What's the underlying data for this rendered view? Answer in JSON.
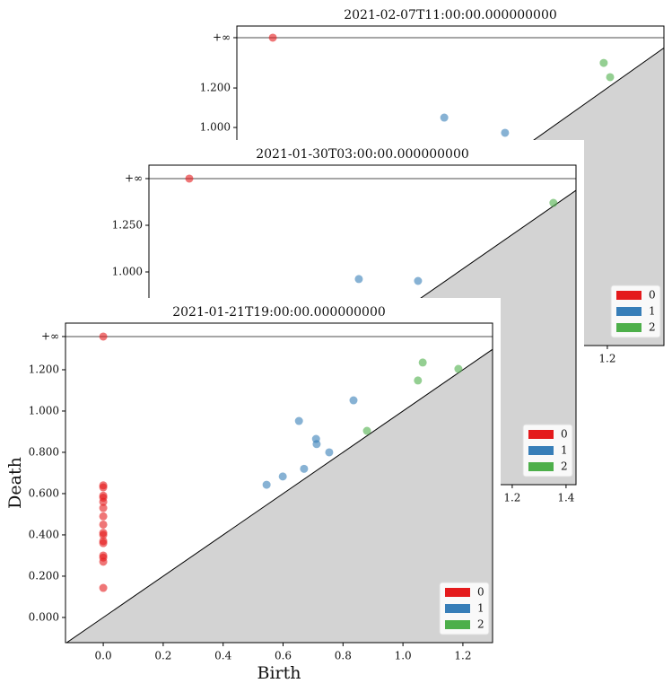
{
  "chart_data": [
    {
      "type": "scatter",
      "title": "2021-02-07T11:00:00.000000000",
      "xlim": [
        -0.129,
        1.403
      ],
      "ylim": [
        -0.105,
        1.514
      ],
      "xticks": [
        1.2
      ],
      "yticks": [
        {
          "value": 1.0,
          "label": "1.000"
        },
        {
          "value": 1.2,
          "label": "1.200"
        },
        {
          "value": 1.455,
          "label": "+∞"
        }
      ],
      "diagonal": true,
      "legend": "lower right",
      "series": [
        {
          "name": "0",
          "color": "#e41a1c",
          "x": [
            0
          ],
          "y": [
            1.455
          ]
        },
        {
          "name": "1",
          "color": "#377eb8",
          "x": [
            0.615,
            0.833
          ],
          "y": [
            1.05,
            0.973
          ]
        },
        {
          "name": "2",
          "color": "#4daf4a",
          "x": [
            1.187,
            1.21
          ],
          "y": [
            1.327,
            1.255
          ]
        }
      ]
    },
    {
      "type": "scatter",
      "title": "2021-01-30T03:00:00.000000000",
      "xlim": [
        -0.15,
        1.437
      ],
      "ylim": [
        -0.139,
        1.572
      ],
      "xticks": [
        1.2,
        1.4
      ],
      "yticks": [
        {
          "value": 1.0,
          "label": "1.000"
        },
        {
          "value": 1.25,
          "label": "1.250"
        },
        {
          "value": 1.5,
          "label": "+∞"
        }
      ],
      "diagonal": true,
      "legend": "lower right",
      "series": [
        {
          "name": "0",
          "color": "#e41a1c",
          "x": [
            0
          ],
          "y": [
            1.5
          ]
        },
        {
          "name": "1",
          "color": "#377eb8",
          "x": [
            0.63,
            0.85
          ],
          "y": [
            0.962,
            0.952
          ]
        },
        {
          "name": "2",
          "color": "#4daf4a",
          "x": [
            1.353
          ],
          "y": [
            1.37
          ]
        }
      ]
    },
    {
      "type": "scatter",
      "title": "2021-01-21T19:00:00.000000000",
      "x_label": "Birth",
      "y_label": "Death",
      "xlim": [
        -0.126,
        1.299
      ],
      "ylim": [
        -0.122,
        1.426
      ],
      "xticks": [
        {
          "value": 0,
          "label": "0.0"
        },
        0.2,
        0.4,
        0.6,
        0.8,
        {
          "value": 1,
          "label": "1.0"
        },
        1.2
      ],
      "yticks": [
        {
          "value": 0,
          "label": "0.000"
        },
        {
          "value": 0.2,
          "label": "0.200"
        },
        {
          "value": 0.4,
          "label": "0.400"
        },
        {
          "value": 0.6,
          "label": "0.600"
        },
        {
          "value": 0.8,
          "label": "0.800"
        },
        {
          "value": 1.0,
          "label": "1.000"
        },
        {
          "value": 1.2,
          "label": "1.200"
        },
        {
          "value": 1.361,
          "label": "+∞"
        }
      ],
      "diagonal": true,
      "legend": "lower right",
      "series": [
        {
          "name": "0",
          "color": "#e41a1c",
          "x": [
            0,
            0,
            0,
            0,
            0,
            0,
            0,
            0,
            0,
            0,
            0,
            0,
            0,
            0,
            0,
            0,
            0
          ],
          "y": [
            0.143,
            0.27,
            0.29,
            0.3,
            0.36,
            0.37,
            0.4,
            0.41,
            0.45,
            0.49,
            0.53,
            0.56,
            0.58,
            0.59,
            0.63,
            0.64,
            1.361
          ]
        },
        {
          "name": "1",
          "color": "#377eb8",
          "x": [
            0.545,
            0.599,
            0.67,
            0.653,
            0.71,
            0.712,
            0.754,
            0.835
          ],
          "y": [
            0.643,
            0.683,
            0.72,
            0.952,
            0.865,
            0.84,
            0.8,
            1.052
          ]
        },
        {
          "name": "2",
          "color": "#4daf4a",
          "x": [
            0.88,
            1.066,
            1.05,
            1.185
          ],
          "y": [
            0.904,
            1.235,
            1.148,
            1.204
          ]
        }
      ]
    }
  ]
}
